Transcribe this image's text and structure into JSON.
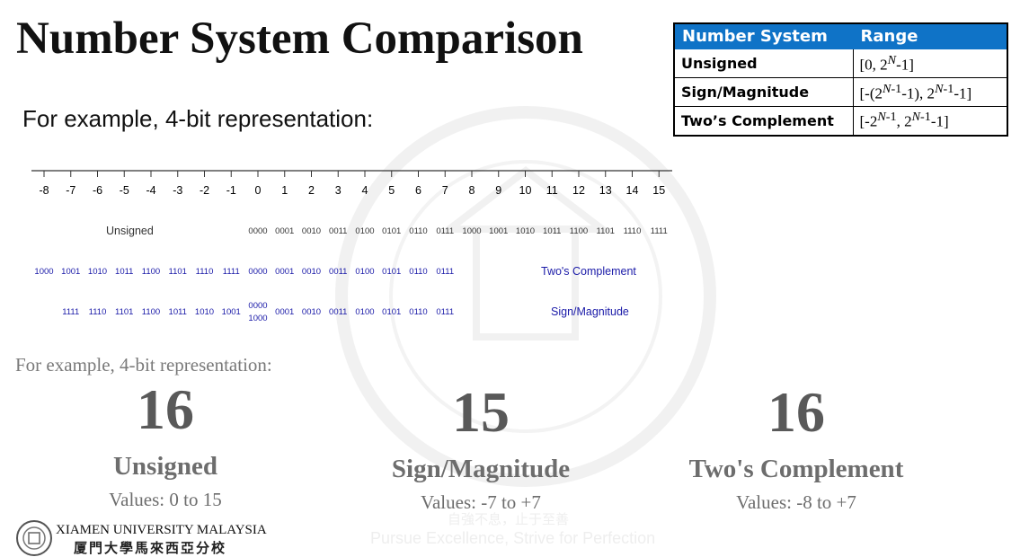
{
  "title": "Number System Comparison",
  "subtitle": "For example, 4-bit representation:",
  "subtitle_serif": "For example, 4-bit representation:",
  "range_table": {
    "headers": [
      "Number System",
      "Range"
    ],
    "rows": [
      {
        "name": "Unsigned",
        "range_html": "[0, 2<sup><i>N</i></sup>-1]"
      },
      {
        "name": "Sign/Magnitude",
        "range_html": "[-(2<sup><i>N</i>-1</sup>-1), 2<sup><i>N</i>-1</sup>-1]"
      },
      {
        "name": "Two’s Complement",
        "range_html": "[-2<sup><i>N</i>-1</sup>, 2<sup><i>N</i>-1</sup>-1]"
      }
    ],
    "header_color": "#0f73c7"
  },
  "number_line": {
    "ticks": [
      "-8",
      "-7",
      "-6",
      "-5",
      "-4",
      "-3",
      "-2",
      "-1",
      "0",
      "1",
      "2",
      "3",
      "4",
      "5",
      "6",
      "7",
      "8",
      "9",
      "10",
      "11",
      "12",
      "13",
      "14",
      "15"
    ],
    "unsigned": {
      "label": "Unsigned",
      "codes": [
        "0000",
        "0001",
        "0010",
        "0011",
        "0100",
        "0101",
        "0110",
        "0111",
        "1000",
        "1001",
        "1010",
        "1011",
        "1100",
        "1101",
        "1110",
        "1111"
      ],
      "start": 0
    },
    "twos_complement": {
      "label": "Two's Complement",
      "codes": [
        "1000",
        "1001",
        "1010",
        "1011",
        "1100",
        "1101",
        "1110",
        "1111",
        "0000",
        "0001",
        "0010",
        "0011",
        "0100",
        "0101",
        "0110",
        "0111"
      ],
      "start": -8
    },
    "sign_magnitude": {
      "label": "Sign/Magnitude",
      "codes": [
        "1111",
        "1110",
        "1101",
        "1100",
        "1011",
        "1010",
        "1001",
        "0000",
        "0001",
        "0010",
        "0011",
        "0100",
        "0101",
        "0110",
        "0111"
      ],
      "start": -7,
      "zero_alt": "1000"
    },
    "colors": {
      "unsigned": "#333333",
      "signed": "#1a1aa8"
    }
  },
  "stats": [
    {
      "count": "16",
      "name": "Unsigned",
      "values": "Values: 0 to 15"
    },
    {
      "count": "15",
      "name": "Sign/Magnitude",
      "values": "Values: -7 to +7"
    },
    {
      "count": "16",
      "name": "Two's Complement",
      "values": "Values: -8 to +7"
    }
  ],
  "footer": {
    "school": "XIAMEN UNIVERSITY MALAYSIA",
    "school_cn": "厦門大學馬來西亞分校",
    "motto_cn": "自強不息，止于至善",
    "motto_en": "Pursue Excellence, Strive for Perfection"
  }
}
